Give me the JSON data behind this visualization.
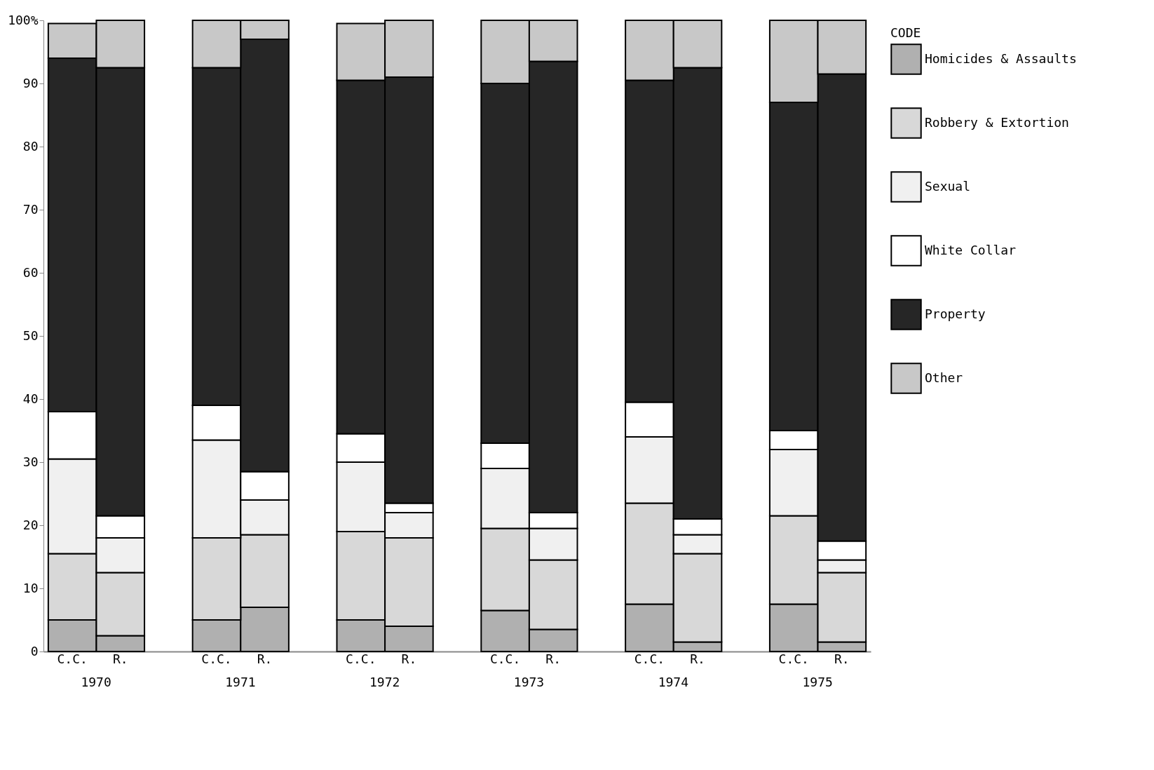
{
  "chart_data": {
    "type": "bar",
    "stacked": true,
    "categories": [
      "C.C.",
      "R.",
      "C.C.",
      "R.",
      "C.C.",
      "R.",
      "C.C.",
      "R.",
      "C.C.",
      "R.",
      "C.C.",
      "R."
    ],
    "annotations": [
      "1970",
      "1971",
      "1972",
      "1973",
      "1974",
      "1975"
    ],
    "legend_title": "CODE",
    "legend": "right",
    "grid": false,
    "ylim": [
      0,
      100
    ],
    "yticks": [
      0,
      10,
      20,
      30,
      40,
      50,
      60,
      70,
      80,
      90,
      {
        "value": 100,
        "label": "100%"
      }
    ],
    "series": [
      {
        "name": "Homicides & Assaults",
        "color": "#b0b0b0",
        "values": [
          5,
          2.5,
          5,
          7,
          5,
          4,
          6.5,
          3.5,
          7.5,
          1.5,
          7.5,
          1.5
        ]
      },
      {
        "name": "Robbery & Extortion",
        "color": "#d8d8d8",
        "values": [
          10.5,
          10,
          13,
          11.5,
          14,
          14,
          13,
          11,
          16,
          14,
          14,
          11
        ]
      },
      {
        "name": "Sexual",
        "color": "#f0f0f0",
        "values": [
          15,
          5.5,
          15.5,
          5.5,
          11,
          4,
          9.5,
          5,
          10.5,
          3,
          10.5,
          2
        ]
      },
      {
        "name": "White Collar",
        "color": "#ffffff",
        "values": [
          7.5,
          3.5,
          5.5,
          4.5,
          4.5,
          1.5,
          4,
          2.5,
          5.5,
          2.5,
          3,
          3
        ]
      },
      {
        "name": "Property",
        "color": "#262626",
        "values": [
          56,
          71,
          53.5,
          68.5,
          56,
          67.5,
          57,
          71.5,
          51,
          71.5,
          52,
          74
        ]
      },
      {
        "name": "Other",
        "color": "#c8c8c8",
        "values": [
          5.5,
          7.5,
          7.5,
          3,
          9,
          9,
          10,
          6.5,
          9.5,
          7.5,
          13,
          8.5
        ]
      }
    ]
  }
}
